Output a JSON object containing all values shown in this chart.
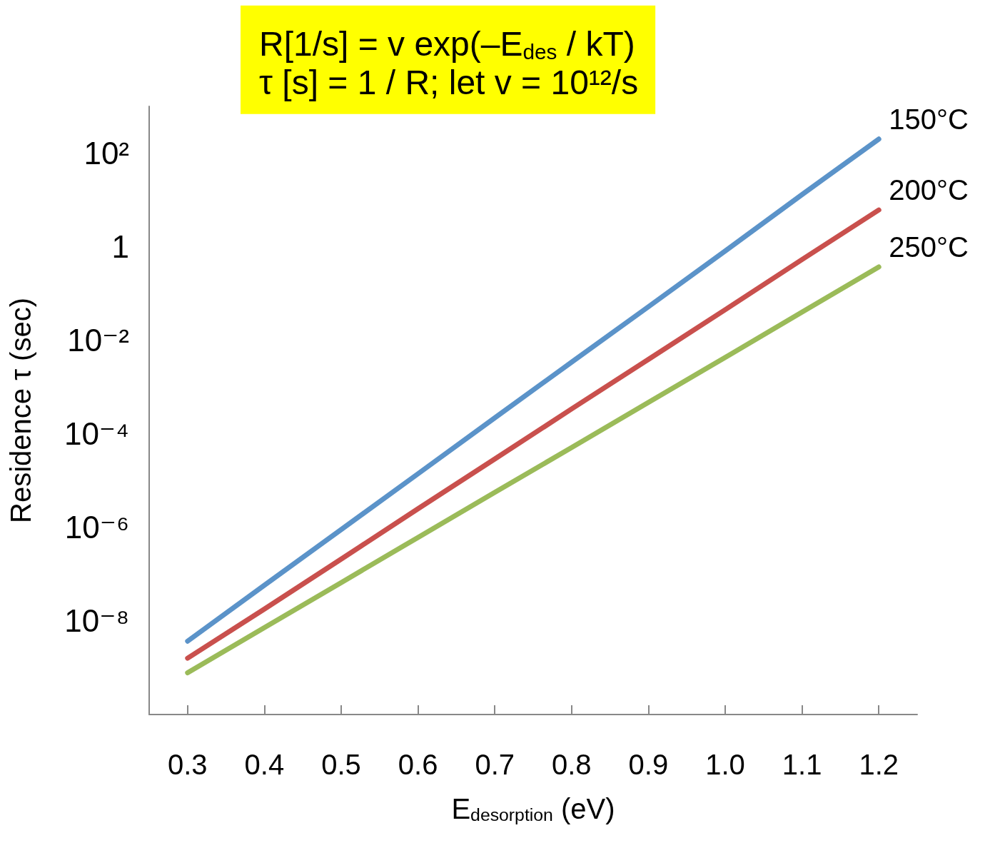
{
  "chart_data": {
    "type": "line",
    "title": "R[1/s] = v exp(–E$_{des}$ / kT)",
    "subtitle": "τ [s] = 1 / R; let v = 10¹²/s",
    "xlabel": "E$_{desorption}$ (eV)",
    "ylabel": "Residence τ (sec)",
    "x": [
      0.3,
      0.4,
      0.5,
      0.6,
      0.7,
      0.8,
      0.9,
      1.0,
      1.1,
      1.2
    ],
    "series": [
      {
        "name": "150°C",
        "color": "#5b93c9",
        "values": [
          3.7e-09,
          5.8e-08,
          9e-07,
          1.4e-05,
          0.00022,
          0.0034,
          0.052,
          0.81,
          13,
          200
        ]
      },
      {
        "name": "200°C",
        "color": "#c9504d",
        "values": [
          1.6e-09,
          1.8e-08,
          2.1e-07,
          2.5e-06,
          2.9e-05,
          0.00034,
          0.0039,
          0.045,
          0.53,
          6.1
        ]
      },
      {
        "name": "250°C",
        "color": "#9bbb59",
        "values": [
          7.8e-10,
          7.2e-09,
          6.6e-08,
          6.1e-07,
          5.6e-06,
          5.1e-05,
          0.00047,
          0.0043,
          0.04,
          0.37
        ]
      }
    ],
    "log": "y",
    "xlim": [
      0.25,
      1.25
    ],
    "xticks": [
      {
        "value": 0.3,
        "label": "0.3"
      },
      {
        "value": 0.4,
        "label": "0.4"
      },
      {
        "value": 0.5,
        "label": "0.5"
      },
      {
        "value": 0.6,
        "label": "0.6"
      },
      {
        "value": 0.7,
        "label": "0.7"
      },
      {
        "value": 0.8,
        "label": "0.8"
      },
      {
        "value": 0.9,
        "label": "0.9"
      },
      {
        "value": 1.0,
        "label": "1.0"
      },
      {
        "value": 1.1,
        "label": "1.1"
      },
      {
        "value": 1.2,
        "label": "1.2"
      }
    ],
    "ylim": [
      1e-10,
      1000
    ],
    "yticks": [
      {
        "value": 1e-08,
        "label": "10⁻⁸"
      },
      {
        "value": 1e-06,
        "label": "10⁻⁶"
      },
      {
        "value": 0.0001,
        "label": "10⁻⁴"
      },
      {
        "value": 0.01,
        "label": "10⁻²"
      },
      {
        "value": 1,
        "label": "1"
      },
      {
        "value": 100,
        "label": "10²"
      }
    ],
    "grid": false,
    "legend": false,
    "marker": "none",
    "line_style": "solid"
  }
}
